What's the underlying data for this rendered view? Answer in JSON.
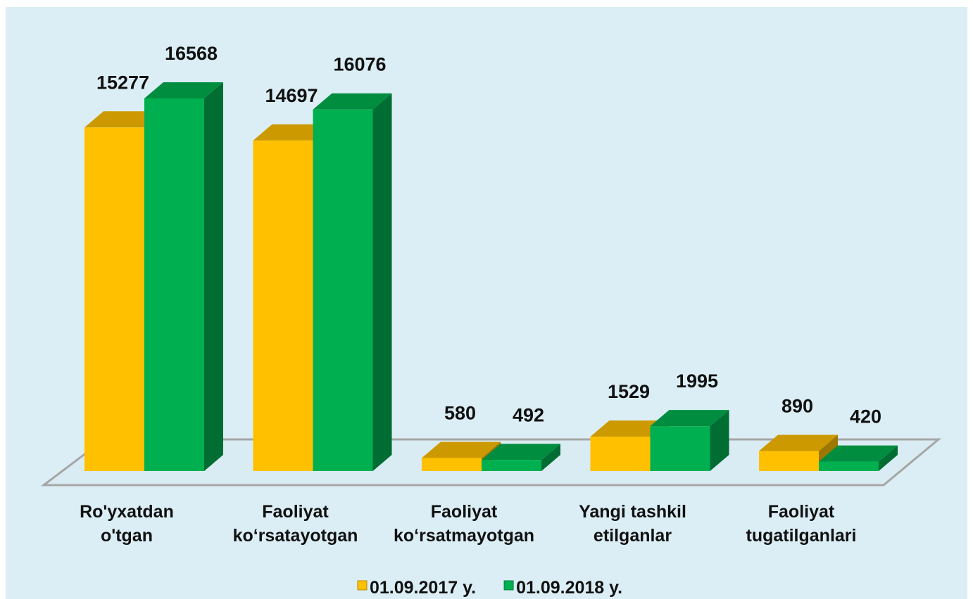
{
  "chart_data": {
    "type": "bar3d",
    "categories": [
      [
        "Ro'yxatdan",
        "o'tgan"
      ],
      [
        "Faoliyat",
        "ko‘rsatayotgan"
      ],
      [
        "Faoliyat",
        "ko‘rsatmayotgan"
      ],
      [
        "Yangi tashkil",
        "etilganlar"
      ],
      [
        "Faoliyat",
        "tugatilganlari"
      ]
    ],
    "series": [
      {
        "name": "01.09.2017 y.",
        "color": "#ffc000",
        "values": [
          15277,
          14697,
          580,
          1529,
          890
        ]
      },
      {
        "name": "01.09.2018 y.",
        "color": "#00b050",
        "values": [
          16568,
          16076,
          492,
          1995,
          420
        ]
      }
    ]
  }
}
